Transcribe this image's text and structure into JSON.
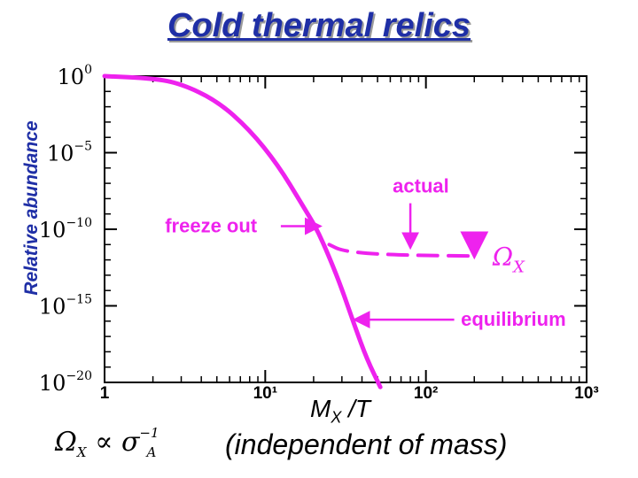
{
  "title": "Cold thermal relics",
  "chart_data": {
    "type": "line",
    "ylabel": "Relative abundance",
    "xlabel": {
      "main": "M",
      "sub": "X",
      "rest": " /T"
    },
    "x_scale": "log",
    "y_scale": "log",
    "xlim": [
      1,
      1000
    ],
    "ylim_exponent": [
      -20,
      0
    ],
    "x_ticks": [
      {
        "value": 1,
        "label": "1"
      },
      {
        "value": 10,
        "label": "10¹"
      },
      {
        "value": 100,
        "label": "10²"
      },
      {
        "value": 1000,
        "label": "10³"
      }
    ],
    "y_ticks": [
      {
        "exp": 0,
        "base": "10",
        "sup": "0"
      },
      {
        "exp": -5,
        "base": "10",
        "sup": "−5"
      },
      {
        "exp": -10,
        "base": "10",
        "sup": "−10"
      },
      {
        "exp": -15,
        "base": "10",
        "sup": "−15"
      },
      {
        "exp": -20,
        "base": "10",
        "sup": "−20"
      }
    ],
    "series": [
      {
        "role": "equilibrium",
        "style": "solid",
        "points": [
          [
            1,
            0
          ],
          [
            2,
            -0.15
          ],
          [
            3,
            -0.5
          ],
          [
            5,
            -1.6
          ],
          [
            8,
            -3.5
          ],
          [
            12,
            -5.8
          ],
          [
            17,
            -8.4
          ],
          [
            21,
            -10.0
          ],
          [
            25,
            -11.8
          ],
          [
            30,
            -13.9
          ],
          [
            36,
            -16.3
          ],
          [
            43,
            -18.5
          ],
          [
            52,
            -20.3
          ]
        ]
      },
      {
        "role": "actual",
        "style": "dashed",
        "points": [
          [
            25,
            -11.0
          ],
          [
            30,
            -11.4
          ],
          [
            45,
            -11.6
          ],
          [
            80,
            -11.7
          ],
          [
            200,
            -11.75
          ]
        ]
      }
    ],
    "annotations": [
      {
        "text": "freeze out",
        "label_pos": [
          8.9,
          -9.8
        ],
        "arrow_from": [
          12.5,
          -9.8
        ],
        "arrow_to": [
          22,
          -9.8
        ]
      },
      {
        "text": "actual",
        "label_pos": [
          93,
          -7.2
        ],
        "arrow_from": [
          80,
          -8.3
        ],
        "arrow_to": [
          80,
          -11.2
        ]
      },
      {
        "text": "equilibrium",
        "label_pos": [
          165,
          -15.9
        ],
        "arrow_from": [
          150,
          -15.9
        ],
        "arrow_to": [
          36,
          -15.9
        ]
      }
    ],
    "series_label": {
      "symbol": "Ω",
      "sub": "X"
    },
    "colors": {
      "curve": "#ee22ee",
      "annotation": "#ee22ee",
      "title": "#1f2fa6",
      "axis": "#000000"
    }
  },
  "formula": {
    "lhs": "Ω",
    "lhs_sub": "X",
    "op": " ∝ ",
    "rhs": "σ",
    "rhs_sub": "A",
    "rhs_sup": "−1"
  },
  "note": "(independent of mass)"
}
